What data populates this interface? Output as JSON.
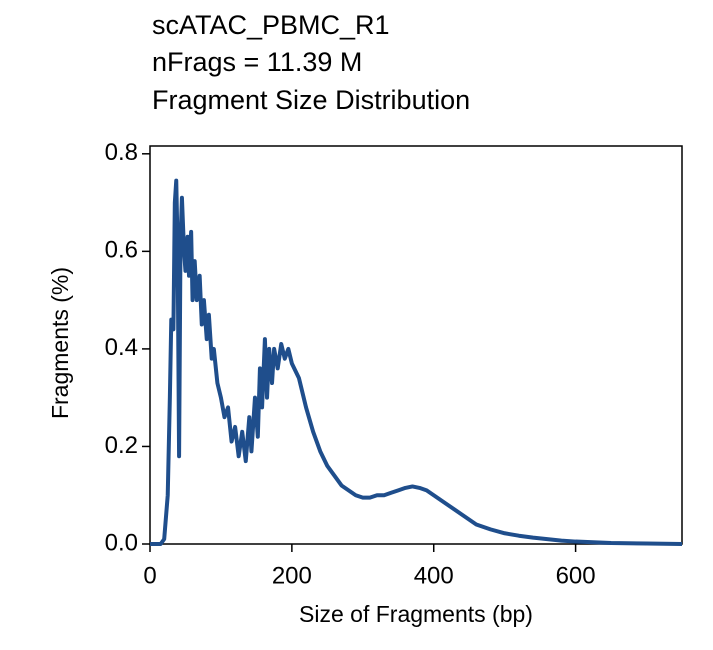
{
  "chart_data": {
    "type": "line",
    "title": "scATAC_PBMC_R1",
    "subtitle": "nFrags = 11.39 M",
    "subtitle2": "Fragment Size Distribution",
    "x_label": "Size of Fragments (bp)",
    "y_label": "Fragments (%)",
    "x": [
      0,
      15,
      20,
      25,
      28,
      30,
      33,
      35,
      37,
      39,
      41,
      43,
      45,
      48,
      50,
      53,
      55,
      58,
      60,
      63,
      66,
      70,
      73,
      76,
      80,
      83,
      87,
      90,
      95,
      100,
      105,
      110,
      115,
      120,
      125,
      130,
      135,
      140,
      143,
      148,
      152,
      155,
      158,
      162,
      165,
      168,
      172,
      175,
      180,
      185,
      190,
      195,
      200,
      210,
      220,
      230,
      240,
      250,
      260,
      270,
      280,
      290,
      300,
      310,
      320,
      330,
      340,
      350,
      360,
      370,
      380,
      390,
      400,
      420,
      440,
      460,
      480,
      500,
      520,
      540,
      560,
      580,
      600,
      650,
      700,
      750
    ],
    "series": [
      {
        "color": "#1f4e8c",
        "values": [
          0,
          0,
          0.01,
          0.1,
          0.3,
          0.46,
          0.44,
          0.7,
          0.745,
          0.6,
          0.18,
          0.62,
          0.71,
          0.6,
          0.56,
          0.63,
          0.55,
          0.64,
          0.5,
          0.58,
          0.5,
          0.55,
          0.45,
          0.5,
          0.42,
          0.47,
          0.38,
          0.4,
          0.33,
          0.3,
          0.26,
          0.28,
          0.21,
          0.24,
          0.18,
          0.23,
          0.17,
          0.26,
          0.19,
          0.3,
          0.22,
          0.36,
          0.28,
          0.42,
          0.3,
          0.4,
          0.33,
          0.4,
          0.36,
          0.41,
          0.38,
          0.4,
          0.37,
          0.34,
          0.28,
          0.23,
          0.19,
          0.16,
          0.14,
          0.12,
          0.11,
          0.1,
          0.095,
          0.095,
          0.1,
          0.1,
          0.105,
          0.11,
          0.115,
          0.118,
          0.115,
          0.11,
          0.1,
          0.08,
          0.06,
          0.04,
          0.03,
          0.022,
          0.017,
          0.013,
          0.01,
          0.007,
          0.005,
          0.002,
          0.001,
          0
        ]
      }
    ],
    "xlim": [
      0,
      750
    ],
    "xticks": [
      0,
      200,
      400,
      600
    ],
    "ylim": [
      0,
      0.816
    ],
    "yticks": [
      {
        "value": 0,
        "label": "0.0"
      },
      0.2,
      0.4,
      0.6,
      0.8
    ]
  }
}
